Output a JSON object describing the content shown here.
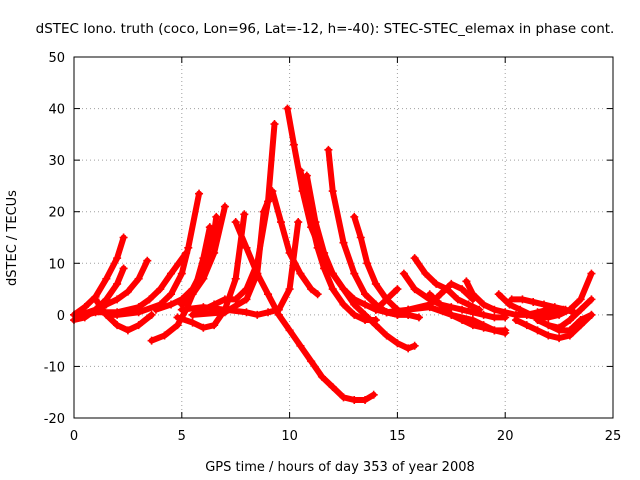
{
  "chart_data": {
    "type": "scatter",
    "title": "dSTEC Iono. truth (coco, Lon=96, Lat=-12, h=-40): STEC-STEC_elemax in phase cont.",
    "xlabel": "GPS time / hours of day 353 of year 2008",
    "ylabel": "dSTEC  / TECUs",
    "xlim": [
      0,
      25
    ],
    "ylim": [
      -20,
      50
    ],
    "xticks": [
      "0",
      "5",
      "10",
      "15",
      "20",
      "25"
    ],
    "yticks": [
      "-20",
      "-10",
      "0",
      "10",
      "20",
      "30",
      "40",
      "50"
    ],
    "grid": true,
    "marker": "plus",
    "color": "#ff0000",
    "series": [
      {
        "x": [
          0.0,
          0.5,
          1.0,
          1.5,
          2.0,
          2.3
        ],
        "y": [
          0,
          1.5,
          3.5,
          7,
          11,
          15
        ]
      },
      {
        "x": [
          0.0,
          0.5,
          1.0,
          1.5,
          2.0,
          2.3
        ],
        "y": [
          -1,
          -0.5,
          1,
          3,
          6,
          9
        ]
      },
      {
        "x": [
          0.3,
          1.0,
          1.5,
          2.0,
          2.5,
          3.0,
          3.4
        ],
        "y": [
          0,
          1,
          2,
          3,
          4.5,
          7,
          10.5
        ]
      },
      {
        "x": [
          0.2,
          1.0,
          2.0,
          3.0,
          3.5,
          4.0,
          4.5,
          5.2
        ],
        "y": [
          -0.5,
          0.5,
          0.5,
          1.5,
          3,
          5,
          8,
          12
        ]
      },
      {
        "x": [
          1.0,
          1.5,
          2.0,
          2.5,
          3.0,
          3.6
        ],
        "y": [
          3,
          0,
          -2,
          -3,
          -2,
          0
        ]
      },
      {
        "x": [
          1.5,
          2.0,
          3.0,
          4.0,
          4.5,
          5.0,
          5.3,
          5.8
        ],
        "y": [
          0,
          0,
          0.5,
          2,
          4,
          8,
          13,
          23.5
        ]
      },
      {
        "x": [
          3.6,
          4.2,
          4.8,
          5.2,
          5.6,
          6.0,
          6.3
        ],
        "y": [
          -5,
          -4,
          -2,
          1,
          5,
          11,
          17
        ]
      },
      {
        "x": [
          3.8,
          4.5,
          5.0,
          5.5,
          6.0,
          6.5,
          6.6
        ],
        "y": [
          1,
          2,
          3,
          5,
          9,
          16,
          19
        ]
      },
      {
        "x": [
          5.0,
          5.5,
          6.0,
          6.5,
          7.0
        ],
        "y": [
          2,
          4,
          7,
          12,
          21
        ]
      },
      {
        "x": [
          4.8,
          5.5,
          6.0,
          6.5,
          7.0,
          7.5,
          7.9
        ],
        "y": [
          -0.5,
          -1.5,
          -2.5,
          -2,
          1,
          7,
          19.5
        ]
      },
      {
        "x": [
          5.5,
          6.5,
          7.0,
          7.5,
          8.0,
          8.5,
          9.0,
          9.3
        ],
        "y": [
          0,
          2,
          3,
          3,
          5,
          10,
          22,
          37
        ]
      },
      {
        "x": [
          5.0,
          6.0,
          7.0,
          8.0,
          8.5,
          9.0,
          9.5,
          10.0,
          10.4
        ],
        "y": [
          1,
          1.5,
          1,
          0.5,
          0,
          0.5,
          1,
          5,
          18
        ]
      },
      {
        "x": [
          5.5,
          7.0,
          8.0,
          8.5,
          8.8,
          9.2,
          9.6,
          10.0,
          10.5,
          11.0,
          11.3
        ],
        "y": [
          0,
          0.5,
          3,
          8,
          20,
          24,
          18,
          12,
          8,
          5,
          4
        ]
      },
      {
        "x": [
          7.5,
          8.0,
          8.5,
          9.0,
          9.5,
          10.0,
          10.5,
          11.0,
          11.5,
          12.0,
          12.5,
          13.0,
          13.5,
          13.9
        ],
        "y": [
          18,
          13,
          8,
          4,
          0,
          -3,
          -6,
          -9,
          -12,
          -14,
          -16,
          -16.5,
          -16.5,
          -15.5
        ]
      },
      {
        "x": [
          9.9,
          10.2,
          10.6,
          11.0,
          11.5,
          12.0,
          12.5,
          13.0,
          13.5,
          14.0,
          14.5,
          15.0,
          15.5,
          15.8
        ],
        "y": [
          40,
          33,
          24,
          17,
          12,
          8,
          5,
          2,
          0,
          -2,
          -4,
          -5.5,
          -6.5,
          -6
        ]
      },
      {
        "x": [
          10.5,
          10.9,
          11.3,
          11.6,
          12.0,
          12.5,
          13.0,
          13.5,
          14.0
        ],
        "y": [
          28,
          20,
          13,
          9,
          5,
          2,
          0,
          -1,
          -1
        ]
      },
      {
        "x": [
          10.8,
          11.2,
          11.6,
          12.0,
          12.5,
          13.0,
          13.5,
          14.0,
          14.5,
          15.0
        ],
        "y": [
          27,
          18,
          12,
          8,
          5,
          3,
          2,
          1,
          0.5,
          0
        ]
      },
      {
        "x": [
          11.8,
          12.0,
          12.5,
          13.0,
          13.5,
          14.0,
          14.5,
          15.0,
          15.5
        ],
        "y": [
          32,
          24,
          14,
          8,
          4,
          2,
          0.5,
          0,
          0
        ]
      },
      {
        "x": [
          13.0,
          13.3,
          13.6,
          14.0,
          14.5,
          15.0,
          15.5,
          16.0
        ],
        "y": [
          19,
          15,
          10,
          6,
          3,
          1,
          0,
          -0.5
        ]
      },
      {
        "x": [
          14.0,
          14.5,
          15.0
        ],
        "y": [
          1,
          3,
          5
        ]
      },
      {
        "x": [
          15.3,
          15.8,
          16.5,
          17.0,
          17.5,
          18.0,
          18.5,
          19.0,
          19.5,
          20.0
        ],
        "y": [
          8,
          5,
          3,
          2,
          1.5,
          1,
          0.5,
          0,
          -0.5,
          -0.5
        ]
      },
      {
        "x": [
          15.8,
          16.3,
          16.8,
          17.3,
          17.8,
          18.3,
          18.8
        ],
        "y": [
          11,
          8,
          6,
          5,
          3,
          2,
          1
        ]
      },
      {
        "x": [
          15.5,
          16.5,
          17.0,
          17.5,
          18.0,
          18.5
        ],
        "y": [
          1,
          2,
          4,
          6,
          5,
          3
        ]
      },
      {
        "x": [
          14.5,
          15.5,
          16.5,
          17.5,
          18.5,
          19.0,
          19.5,
          20.0
        ],
        "y": [
          0.5,
          1,
          1.5,
          0,
          -1,
          -2,
          -3,
          -3.5
        ]
      },
      {
        "x": [
          16.5,
          17.0,
          17.5,
          18.0,
          18.5,
          19.0,
          19.5,
          20.0
        ],
        "y": [
          4,
          2,
          0,
          -1,
          -2,
          -2.5,
          -3,
          -3
        ]
      },
      {
        "x": [
          18.2,
          18.5,
          19.0,
          19.5,
          20.0,
          20.5,
          21.0,
          21.5,
          22.0
        ],
        "y": [
          6.5,
          4,
          2,
          1,
          0.5,
          0,
          0,
          0.5,
          1
        ]
      },
      {
        "x": [
          19.7,
          20.2,
          20.7,
          21.2,
          21.7,
          22.2,
          22.7
        ],
        "y": [
          4,
          2,
          1,
          0,
          0,
          0.5,
          1
        ]
      },
      {
        "x": [
          20.3,
          20.8,
          21.3,
          21.8,
          22.3,
          22.8,
          23.2
        ],
        "y": [
          3,
          3,
          2.5,
          2,
          1.5,
          1,
          0.5
        ]
      },
      {
        "x": [
          20.5,
          21.0,
          21.5,
          22.0,
          22.5,
          23.0,
          23.5,
          24.0
        ],
        "y": [
          -1,
          -2,
          -3,
          -4,
          -4.5,
          -4,
          -2,
          0
        ]
      },
      {
        "x": [
          21.0,
          21.5,
          22.0,
          22.5,
          23.0,
          23.5,
          24.0
        ],
        "y": [
          0,
          -0.5,
          -0.5,
          0,
          1,
          3,
          8
        ]
      },
      {
        "x": [
          21.5,
          22.0,
          22.5,
          23.0,
          23.5,
          24.0
        ],
        "y": [
          -1,
          -2,
          -2.5,
          -1,
          1,
          3
        ]
      },
      {
        "x": [
          22.0,
          22.5,
          23.0,
          23.5,
          24.0
        ],
        "y": [
          -2,
          -3,
          -3,
          -1,
          0
        ]
      }
    ]
  }
}
